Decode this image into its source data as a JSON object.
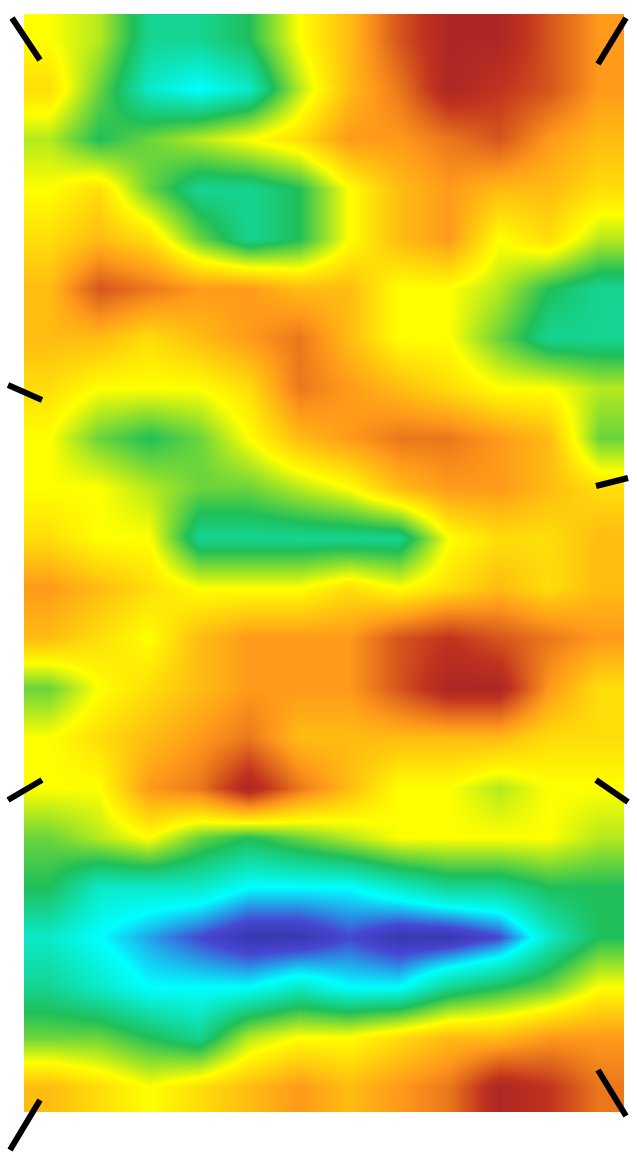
{
  "chart_data": {
    "type": "heatmap",
    "z": [
      [
        5,
        4.5,
        3,
        3,
        3.5,
        5,
        6,
        7.5,
        8.5,
        8.5,
        7.5,
        6.5
      ],
      [
        5.5,
        4,
        2.5,
        2,
        2.5,
        4.5,
        6,
        7,
        8.5,
        8,
        7.5,
        6.5
      ],
      [
        4.5,
        3.5,
        4,
        4.5,
        5,
        5.5,
        6.5,
        6.5,
        7,
        7.5,
        6.5,
        6
      ],
      [
        5,
        5.5,
        4,
        3,
        3,
        3.5,
        5,
        6,
        6.5,
        6,
        6,
        5.5
      ],
      [
        5.5,
        6,
        5.5,
        4,
        3,
        3.5,
        5,
        6,
        6.5,
        5,
        5.5,
        4.5
      ],
      [
        6,
        7.5,
        7,
        6.5,
        6.5,
        6,
        6,
        5,
        5,
        4.5,
        3.5,
        3
      ],
      [
        6,
        6,
        5.5,
        6,
        6.5,
        7,
        6,
        5,
        5,
        4,
        3,
        3
      ],
      [
        5.5,
        5,
        5,
        5,
        5.5,
        7,
        6.5,
        6,
        5.5,
        5,
        5,
        4.5
      ],
      [
        5,
        4,
        3.5,
        4,
        5,
        6,
        6.5,
        7,
        7,
        6.5,
        6,
        4
      ],
      [
        5,
        5,
        4.5,
        4,
        4,
        4.5,
        5,
        6,
        6.5,
        6.5,
        6,
        5.5
      ],
      [
        5.5,
        5,
        5,
        3,
        3,
        3,
        3,
        3,
        5,
        5.5,
        5.5,
        6
      ],
      [
        6.5,
        6,
        5.5,
        5,
        5,
        5,
        5.5,
        5,
        5.5,
        6,
        5.5,
        6
      ],
      [
        6,
        5.5,
        5,
        6,
        6.5,
        6.5,
        6.5,
        7.5,
        8,
        7.5,
        7,
        6.5
      ],
      [
        4,
        5,
        5.5,
        6,
        6.5,
        6.5,
        6.5,
        7.5,
        8.5,
        8.5,
        6.5,
        5.5
      ],
      [
        5,
        5.5,
        6,
        6.5,
        7,
        6,
        6,
        6,
        6,
        6,
        5.5,
        5.5
      ],
      [
        5,
        5,
        6.5,
        7,
        8.5,
        7,
        6,
        5,
        5,
        4.5,
        5,
        5
      ],
      [
        4,
        4.5,
        5,
        4,
        3.5,
        4,
        4.5,
        5,
        5,
        5,
        5,
        4.5
      ],
      [
        3.5,
        2.5,
        2.5,
        2.5,
        2,
        2,
        2,
        2.5,
        3,
        3,
        3.5,
        3.5
      ],
      [
        2.5,
        2,
        1.5,
        1,
        0.5,
        0.5,
        1,
        0.5,
        0.5,
        1,
        2.5,
        3.5
      ],
      [
        3,
        2.5,
        2,
        2,
        2,
        2.5,
        2,
        2,
        3,
        3.5,
        4,
        5
      ],
      [
        4,
        4,
        3.5,
        3,
        4.5,
        5,
        5,
        5.5,
        6,
        6,
        6.5,
        6.5
      ],
      [
        6,
        5.5,
        5,
        5.5,
        6,
        6.5,
        6,
        6.5,
        7,
        8.5,
        8,
        7
      ]
    ],
    "zlim": [
      0,
      10
    ],
    "xlim": [
      -0.5,
      11.5
    ],
    "ylim": [
      21.5,
      -0.5
    ],
    "tick_labels": false
  }
}
